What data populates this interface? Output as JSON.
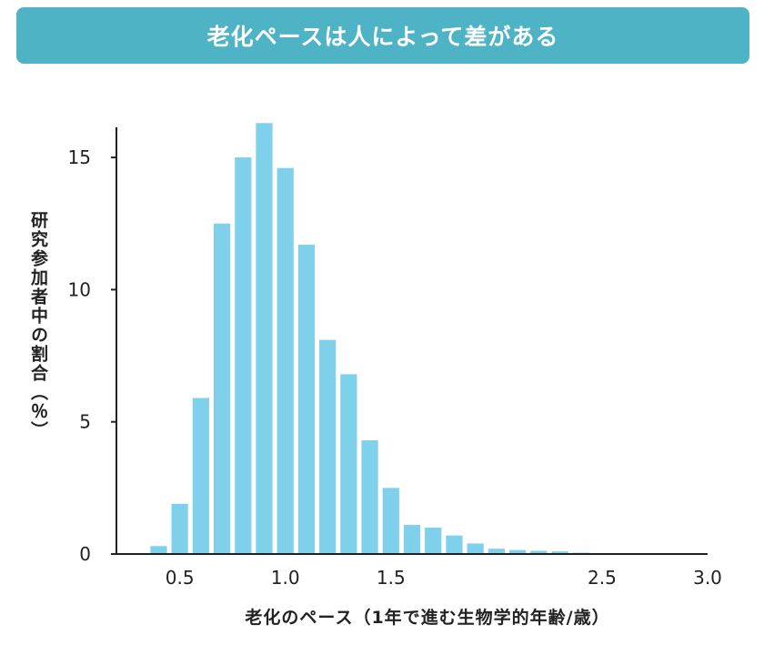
{
  "chart_data": {
    "type": "bar",
    "title": "老化ペースは人によって差がある",
    "xlabel": "老化のペース（1年で進む生物学的年齢/歳）",
    "ylabel": "研究参加者中の割合（％）",
    "xlim": [
      0.2,
      3.0
    ],
    "ylim": [
      0,
      16
    ],
    "xticks": [
      "0.5",
      "1.0",
      "1.5",
      "2.5",
      "3.0"
    ],
    "yticks": [
      "0",
      "5",
      "10",
      "15"
    ],
    "bin_centers": [
      0.4,
      0.5,
      0.6,
      0.7,
      0.8,
      0.9,
      1.0,
      1.1,
      1.2,
      1.3,
      1.4,
      1.5,
      1.6,
      1.7,
      1.8,
      1.9,
      2.0,
      2.1,
      2.2,
      2.3,
      2.4
    ],
    "values": [
      0.3,
      1.9,
      5.9,
      12.5,
      15.0,
      16.3,
      14.6,
      11.7,
      8.1,
      6.8,
      4.3,
      2.5,
      1.1,
      1.0,
      0.7,
      0.4,
      0.2,
      0.15,
      0.12,
      0.1,
      0.05
    ],
    "bar_color": "#7fd0ea",
    "grid": false
  }
}
